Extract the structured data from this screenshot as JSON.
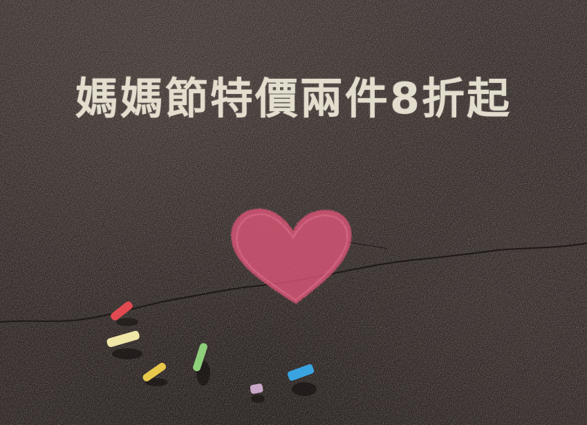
{
  "headline": "媽媽節特價兩件8折起",
  "colors": {
    "asphalt": "#332b29",
    "chalk_text": "#ece6d6",
    "heart": "#e2567a",
    "chalk_red": "#e24a52",
    "chalk_yellow": "#f0e6a8",
    "chalk_gold": "#e8c84a",
    "chalk_green": "#8fd07a",
    "chalk_lilac": "#c9a7c8",
    "chalk_blue": "#3aa4e0"
  },
  "objects": [
    "chalk-heart",
    "pavement-crack",
    "chalk-sticks"
  ]
}
